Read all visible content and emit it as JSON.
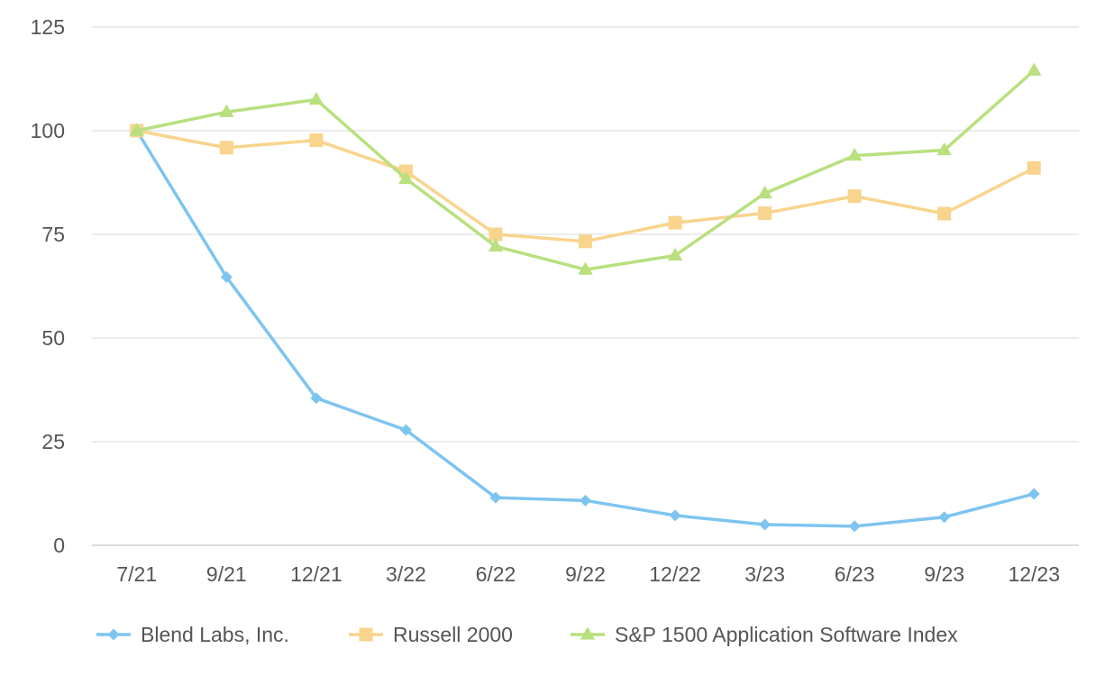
{
  "chart_data": {
    "type": "line",
    "categories": [
      "7/21",
      "9/21",
      "12/21",
      "3/22",
      "6/22",
      "9/22",
      "12/22",
      "3/23",
      "6/23",
      "9/23",
      "12/23"
    ],
    "ylim": [
      0,
      125
    ],
    "yticks": [
      0,
      25,
      50,
      75,
      100,
      125
    ],
    "grid": true,
    "legend_position": "bottom",
    "series": [
      {
        "name": "Blend Labs, Inc.",
        "color": "#7ec4f0",
        "marker": "diamond",
        "values": [
          100,
          64.7,
          35.5,
          27.8,
          11.5,
          10.8,
          7.2,
          5.0,
          4.6,
          6.8,
          12.4
        ]
      },
      {
        "name": "Russell 2000",
        "color": "#f8d48c",
        "marker": "square",
        "values": [
          100,
          95.9,
          97.7,
          90.2,
          75.0,
          73.3,
          77.8,
          80.1,
          84.2,
          80.0,
          91.0
        ]
      },
      {
        "name": "S&P 1500 Application Software Index",
        "color": "#b8e07e",
        "marker": "triangle",
        "values": [
          100,
          104.5,
          107.5,
          88.4,
          72.1,
          66.5,
          69.9,
          84.9,
          94.0,
          95.3,
          114.5
        ]
      }
    ]
  }
}
